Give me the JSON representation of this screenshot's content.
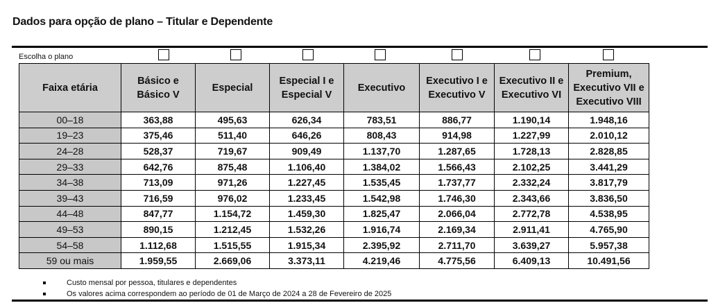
{
  "title": "Dados para opção de plano – Titular e Dependente",
  "choose_label": "Escolha o plano",
  "table": {
    "headers": [
      "Faixa etária",
      "Básico e Básico V",
      "Especial",
      "Especial I e Especial V",
      "Executivo",
      "Executivo I e Executivo V",
      "Executivo II e Executivo VI",
      "Premium, Executivo VII e Executivo VIII"
    ],
    "rows": [
      [
        "00–18",
        "363,88",
        "495,63",
        "626,34",
        "783,51",
        "886,77",
        "1.190,14",
        "1.948,16"
      ],
      [
        "19–23",
        "375,46",
        "511,40",
        "646,26",
        "808,43",
        "914,98",
        "1.227,99",
        "2.010,12"
      ],
      [
        "24–28",
        "528,37",
        "719,67",
        "909,49",
        "1.137,70",
        "1.287,65",
        "1.728,13",
        "2.828,85"
      ],
      [
        "29–33",
        "642,76",
        "875,48",
        "1.106,40",
        "1.384,02",
        "1.566,43",
        "2.102,25",
        "3.441,29"
      ],
      [
        "34–38",
        "713,09",
        "971,26",
        "1.227,45",
        "1.535,45",
        "1.737,77",
        "2.332,24",
        "3.817,79"
      ],
      [
        "39–43",
        "716,59",
        "976,02",
        "1.233,45",
        "1.542,98",
        "1.746,30",
        "2.343,66",
        "3.836,50"
      ],
      [
        "44–48",
        "847,77",
        "1.154,72",
        "1.459,30",
        "1.825,47",
        "2.066,04",
        "2.772,78",
        "4.538,95"
      ],
      [
        "49–53",
        "890,15",
        "1.212,45",
        "1.532,26",
        "1.916,74",
        "2.169,34",
        "2.911,41",
        "4.765,90"
      ],
      [
        "54–58",
        "1.112,68",
        "1.515,55",
        "1.915,34",
        "2.395,92",
        "2.711,70",
        "3.639,27",
        "5.957,38"
      ],
      [
        "59 ou mais",
        "1.959,55",
        "2.669,06",
        "3.373,11",
        "4.219,46",
        "4.775,56",
        "6.409,13",
        "10.491,56"
      ]
    ]
  },
  "notes": [
    "Custo mensal por pessoa, titulares e dependentes",
    "Os valores acima correspondem ao período de 01 de Março de 2024 a 28 de Fevereiro de 2025"
  ],
  "colors": {
    "header_bg": "#cdcdcd",
    "age_col_bg": "#c8c8c8",
    "rule": "#000000"
  }
}
